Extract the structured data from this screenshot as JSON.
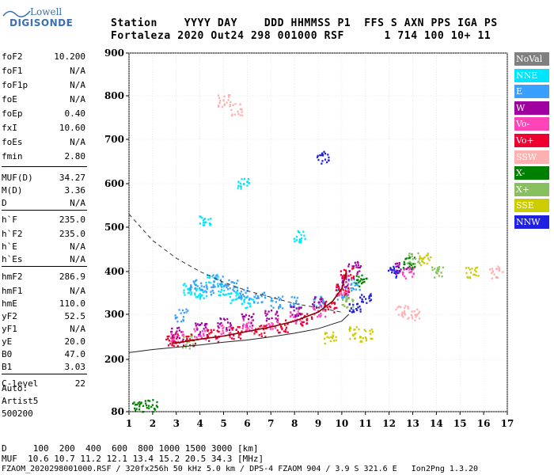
{
  "logo": {
    "line1": "Lowell",
    "line2": "DIGISONDE"
  },
  "header": {
    "line1": "Station    YYYY DAY    DDD HHMMSS P1  FFS S AXN PPS IGA PS",
    "line2": "Fortaleza 2020 Out24 298 001000 RSF      1 714 100 10+ 11"
  },
  "params": [
    {
      "label": "foF2",
      "value": "10.200"
    },
    {
      "label": "foF1",
      "value": "N/A"
    },
    {
      "label": "foF1p",
      "value": "N/A"
    },
    {
      "label": "foE",
      "value": "N/A"
    },
    {
      "label": "foEp",
      "value": "0.40"
    },
    {
      "label": "fxI",
      "value": "10.60"
    },
    {
      "label": "foEs",
      "value": "N/A"
    },
    {
      "label": "fmin",
      "value": "2.80"
    },
    {
      "label": "MUF(D)",
      "value": "34.27"
    },
    {
      "label": "M(D)",
      "value": "3.36"
    },
    {
      "label": "D",
      "value": "N/A"
    },
    {
      "label": "h`F",
      "value": "235.0"
    },
    {
      "label": "h`F2",
      "value": "235.0"
    },
    {
      "label": "h`E",
      "value": "N/A"
    },
    {
      "label": "h`Es",
      "value": "N/A"
    },
    {
      "label": "hmF2",
      "value": "286.9"
    },
    {
      "label": "hmF1",
      "value": "N/A"
    },
    {
      "label": "hmE",
      "value": "110.0"
    },
    {
      "label": "yF2",
      "value": "52.5"
    },
    {
      "label": "yF1",
      "value": "N/A"
    },
    {
      "label": "yE",
      "value": "20.0"
    },
    {
      "label": "B0",
      "value": "47.0"
    },
    {
      "label": "B1",
      "value": "3.03"
    },
    {
      "label": "C-level",
      "value": "22"
    }
  ],
  "auto": {
    "line1": "Auto:",
    "line2": "Artist5",
    "line3": "500200"
  },
  "legend": [
    {
      "label": "NoVal",
      "bg": "#808080",
      "fg": "#ffffff"
    },
    {
      "label": "NNE",
      "bg": "#00e5ff",
      "fg": "#ffffff"
    },
    {
      "label": "E",
      "bg": "#3aa0ff",
      "fg": "#ffffff"
    },
    {
      "label": "W",
      "bg": "#a000a0",
      "fg": "#ffffff"
    },
    {
      "label": "Vo-",
      "bg": "#ff44b8",
      "fg": "#ffffff"
    },
    {
      "label": "Vo+",
      "bg": "#ee0030",
      "fg": "#ffffff"
    },
    {
      "label": "SSW",
      "bg": "#ffb0b0",
      "fg": "#ffffff"
    },
    {
      "label": "X-",
      "bg": "#008000",
      "fg": "#ffffff"
    },
    {
      "label": "X+",
      "bg": "#88c060",
      "fg": "#ffffff"
    },
    {
      "label": "SSE",
      "bg": "#cccc00",
      "fg": "#ffffff"
    },
    {
      "label": "NNW",
      "bg": "#2020e0",
      "fg": "#ffffff"
    }
  ],
  "footer": {
    "d_line": "D     100  200  400  600  800 1000 1500 3000 [km]",
    "muf_line": "MUF  10.6 10.7 11.2 12.1 13.4 15.2 20.5 34.3 [MHz]",
    "file_line": "FZAOM_2020298001000.RSF / 320fx256h 50 kHz 5.0 km / DPS-4 FZAOM 904 / 3.9 S 321.6 E   Ion2Png 1.3.20"
  },
  "chart_data": {
    "type": "scatter",
    "x_ticks": [
      1,
      2,
      3,
      4,
      5,
      6,
      7,
      8,
      9,
      10,
      11,
      12,
      13,
      14,
      15,
      16,
      17
    ],
    "y_ticks": [
      80,
      200,
      300,
      400,
      500,
      600,
      700,
      800,
      900
    ],
    "xlim": [
      1,
      17
    ],
    "ylim": [
      80,
      900
    ],
    "grid": true,
    "legend_position": "right",
    "series": [
      {
        "name": "NNE",
        "color": "#00e5ff",
        "points": [
          [
            3.5,
            360
          ],
          [
            4.0,
            350
          ],
          [
            4.5,
            380
          ],
          [
            5.0,
            360
          ],
          [
            5.5,
            340
          ],
          [
            6.0,
            330
          ],
          [
            4.2,
            520
          ],
          [
            5.8,
            600
          ],
          [
            8.2,
            480
          ]
        ]
      },
      {
        "name": "E",
        "color": "#3aa0ff",
        "points": [
          [
            3.2,
            300
          ],
          [
            3.8,
            370
          ],
          [
            4.3,
            360
          ],
          [
            4.8,
            380
          ],
          [
            5.3,
            370
          ],
          [
            5.8,
            350
          ],
          [
            6.5,
            340
          ],
          [
            7.2,
            330
          ],
          [
            8.0,
            330
          ],
          [
            9.0,
            330
          ],
          [
            10.0,
            350
          ],
          [
            10.5,
            370
          ]
        ]
      },
      {
        "name": "W",
        "color": "#a000a0",
        "points": [
          [
            3.0,
            260
          ],
          [
            4.0,
            270
          ],
          [
            5.0,
            280
          ],
          [
            6.0,
            290
          ],
          [
            7.0,
            300
          ],
          [
            8.0,
            310
          ],
          [
            9.0,
            330
          ],
          [
            10.0,
            380
          ],
          [
            10.5,
            410
          ],
          [
            12.5,
            410
          ]
        ]
      },
      {
        "name": "Vo-",
        "color": "#ff44b8",
        "points": [
          [
            3.0,
            250
          ],
          [
            4.0,
            260
          ],
          [
            5.0,
            265
          ],
          [
            6.0,
            275
          ],
          [
            7.0,
            280
          ],
          [
            8.0,
            295
          ],
          [
            9.0,
            310
          ],
          [
            10.0,
            360
          ],
          [
            12.8,
            400
          ]
        ]
      },
      {
        "name": "Vo+",
        "color": "#ee0030",
        "points": [
          [
            2.8,
            245
          ],
          [
            3.5,
            245
          ],
          [
            4.5,
            255
          ],
          [
            5.5,
            260
          ],
          [
            6.5,
            265
          ],
          [
            7.5,
            275
          ],
          [
            8.5,
            290
          ],
          [
            9.5,
            320
          ],
          [
            10.0,
            360
          ],
          [
            10.2,
            400
          ]
        ]
      },
      {
        "name": "SSW",
        "color": "#ffb0b0",
        "points": [
          [
            12.5,
            310
          ],
          [
            13.0,
            300
          ],
          [
            5.0,
            790
          ],
          [
            5.5,
            770
          ],
          [
            16.5,
            400
          ]
        ]
      },
      {
        "name": "X-",
        "color": "#008000",
        "points": [
          [
            1.4,
            90
          ],
          [
            1.9,
            95
          ],
          [
            10.8,
            380
          ],
          [
            12.8,
            420
          ]
        ]
      },
      {
        "name": "X+",
        "color": "#88c060",
        "points": [
          [
            3.5,
            240
          ],
          [
            10.2,
            330
          ],
          [
            13.0,
            430
          ],
          [
            14.0,
            400
          ]
        ]
      },
      {
        "name": "SSE",
        "color": "#cccc00",
        "points": [
          [
            9.5,
            250
          ],
          [
            10.5,
            260
          ],
          [
            11.0,
            255
          ],
          [
            13.5,
            430
          ],
          [
            15.5,
            400
          ]
        ]
      },
      {
        "name": "NNW",
        "color": "#2020e0",
        "points": [
          [
            9.2,
            660
          ],
          [
            10.5,
            320
          ],
          [
            11.0,
            340
          ],
          [
            12.2,
            400
          ]
        ]
      }
    ],
    "curves": [
      {
        "name": "virtual height",
        "style": "dark-red",
        "points": [
          [
            2.8,
            235
          ],
          [
            4,
            245
          ],
          [
            5,
            252
          ],
          [
            6,
            262
          ],
          [
            7,
            272
          ],
          [
            8,
            285
          ],
          [
            9,
            305
          ],
          [
            9.6,
            330
          ],
          [
            10,
            360
          ],
          [
            10.2,
            400
          ]
        ]
      },
      {
        "name": "profile",
        "style": "dashed",
        "points": [
          [
            1,
            530
          ],
          [
            2,
            470
          ],
          [
            3,
            430
          ],
          [
            4,
            400
          ],
          [
            5,
            375
          ],
          [
            6,
            355
          ],
          [
            7,
            340
          ],
          [
            8,
            325
          ],
          [
            9,
            315
          ],
          [
            10,
            305
          ]
        ]
      },
      {
        "name": "baseline",
        "style": "solid",
        "points": [
          [
            1,
            215
          ],
          [
            2,
            222
          ],
          [
            3,
            227
          ],
          [
            4,
            232
          ],
          [
            5,
            238
          ],
          [
            6,
            243
          ],
          [
            7,
            250
          ],
          [
            8,
            258
          ],
          [
            9,
            268
          ],
          [
            10,
            285
          ],
          [
            10.3,
            300
          ]
        ]
      }
    ]
  }
}
